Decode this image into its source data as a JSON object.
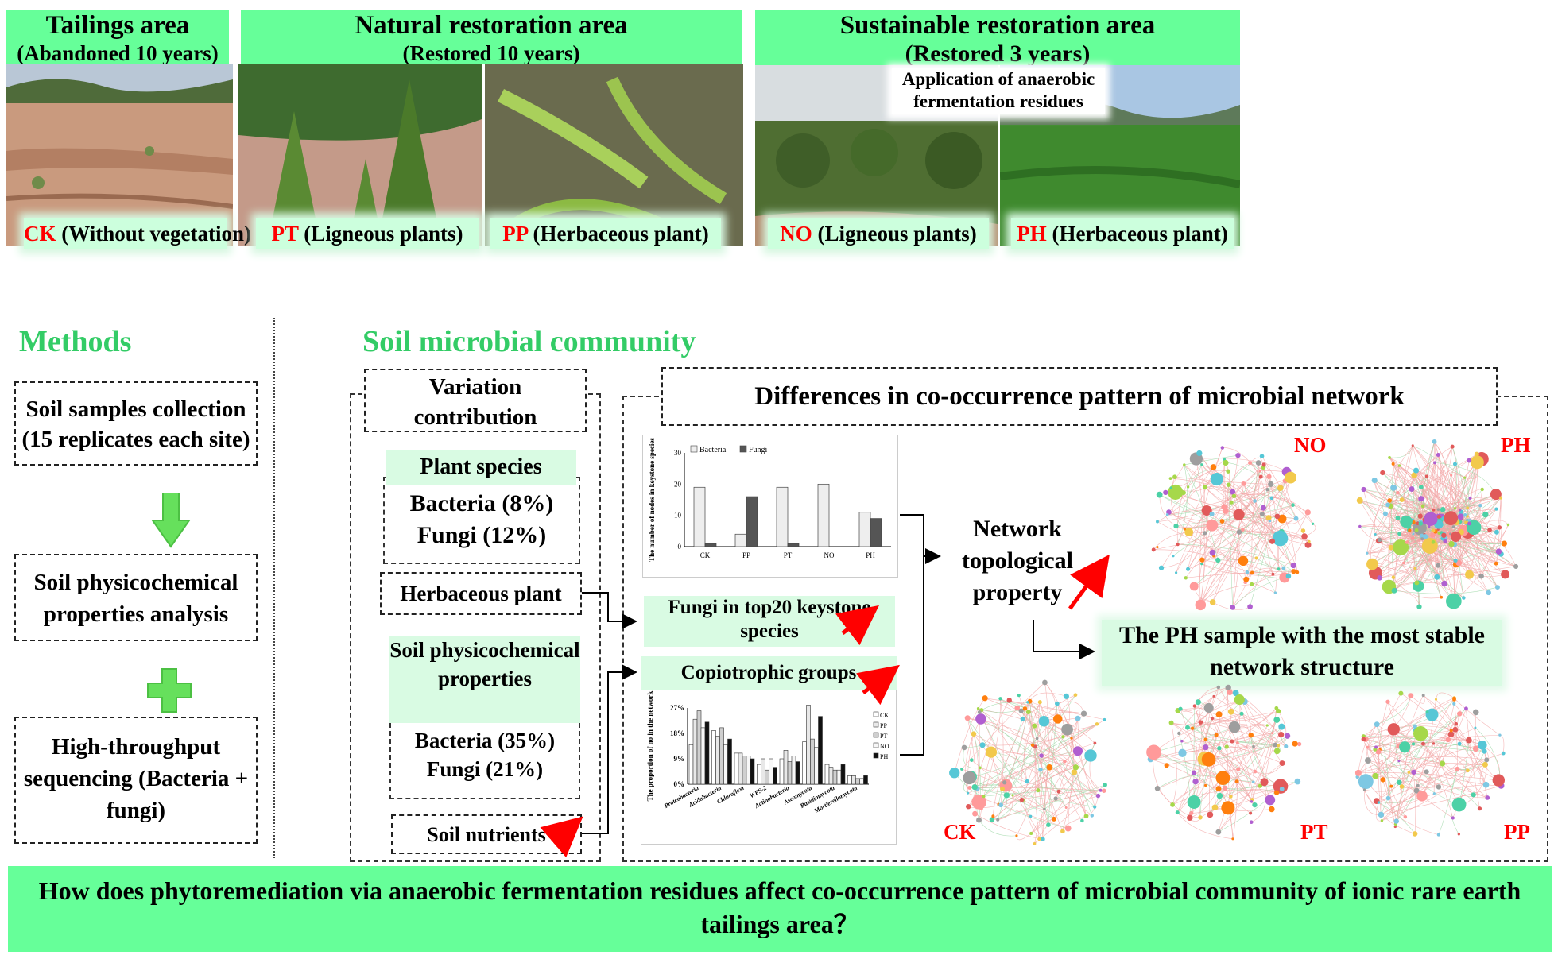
{
  "sites": {
    "tailings": {
      "title": "Tailings area",
      "subtitle": "(Abandoned 10 years)"
    },
    "natural": {
      "title": "Natural restoration area",
      "subtitle": "(Restored 10 years)"
    },
    "sustainable": {
      "title": "Sustainable restoration area",
      "subtitle": "(Restored 3 years)",
      "note": "Application of anaerobic fermentation residues"
    }
  },
  "samples": [
    {
      "code": "CK",
      "desc": "(Without vegetation)"
    },
    {
      "code": "PT",
      "desc": "(Ligneous plants)"
    },
    {
      "code": "PP",
      "desc": "(Herbaceous plant)"
    },
    {
      "code": "NO",
      "desc": "(Ligneous plants)"
    },
    {
      "code": "PH",
      "desc": "(Herbaceous plant)"
    }
  ],
  "methods": {
    "title": "Methods",
    "steps": [
      "Soil samples collection (15 replicates each site)",
      "Soil physicochemical properties analysis",
      "High-throughput sequencing (Bacteria + fungi)"
    ]
  },
  "community": {
    "title": "Soil microbial community",
    "variation": {
      "title": "Variation contribution",
      "plant_label": "Plant species",
      "plant_bacteria": "Bacteria (8%)",
      "plant_fungi": "Fungi (12%)",
      "herbaceous": "Herbaceous plant",
      "soil_label": "Soil physicochemical properties",
      "soil_bacteria": "Bacteria (35%)",
      "soil_fungi": "Fungi (21%)",
      "nutrients": "Soil nutrients"
    },
    "network": {
      "title": "Differences in co-occurrence pattern of  microbial network",
      "fungi_keystone": "Fungi in top20 keystone species",
      "copiotrophic": "Copiotrophic  groups",
      "topological": "Network topological property",
      "stable": "The PH sample with the most stable network structure",
      "labels": [
        "NO",
        "PH",
        "CK",
        "PT",
        "PP"
      ]
    }
  },
  "question": "How does phytoremediation via anaerobic fermentation residues affect co-occurrence pattern of microbial community of ionic rare earth tailings area？",
  "chart_data": [
    {
      "type": "bar",
      "ylabel": "The number of nodes in keystone species",
      "categories": [
        "CK",
        "PP",
        "PT",
        "NO",
        "PH"
      ],
      "ylim": [
        0,
        30
      ],
      "yticks": [
        "0",
        "10",
        "20",
        "30"
      ],
      "series": [
        {
          "name": "Bacteria",
          "values": [
            19,
            4,
            19,
            20,
            11
          ]
        },
        {
          "name": "Fungi",
          "values": [
            1,
            16,
            1,
            0,
            9
          ]
        }
      ],
      "legend": "top-left"
    },
    {
      "type": "bar",
      "ylabel": "The proportion  of no in the network",
      "categories": [
        "Proteobacteria",
        "Acidobacteria",
        "Chloroflexi",
        "WPS-2",
        "Actinobacteria",
        "Ascomycota",
        "Basidiomycota",
        "Mortierellomycota"
      ],
      "ylim": [
        0,
        27
      ],
      "yticks": [
        "0%",
        "9%",
        "18%",
        "27%"
      ],
      "series": [
        {
          "name": "CK",
          "values": [
            14,
            19,
            11,
            7,
            9,
            15,
            7,
            3
          ]
        },
        {
          "name": "PP",
          "values": [
            23,
            17,
            11,
            9,
            12,
            28,
            6,
            3
          ]
        },
        {
          "name": "PT",
          "values": [
            26,
            20,
            10,
            5,
            8,
            16,
            5,
            2
          ]
        },
        {
          "name": "NO",
          "values": [
            20,
            14,
            10,
            9,
            10,
            13,
            5,
            2
          ]
        },
        {
          "name": "PH",
          "values": [
            22,
            16,
            9,
            6,
            8,
            24,
            7,
            3
          ]
        }
      ],
      "legend": "right"
    }
  ]
}
